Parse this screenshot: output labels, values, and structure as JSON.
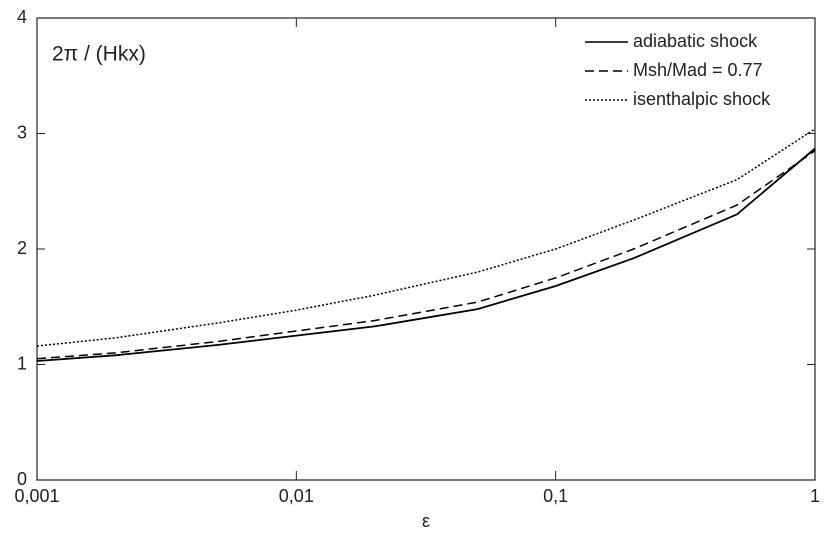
{
  "chart_data": {
    "type": "line",
    "title": "2π / (Hkx)",
    "x_label": "ε",
    "x": [
      0.001,
      0.002,
      0.005,
      0.01,
      0.02,
      0.05,
      0.1,
      0.2,
      0.5,
      1
    ],
    "x_scale": "log",
    "series": [
      {
        "name": "adiabatic shock",
        "color": "#000000",
        "dash": "solid",
        "values": [
          1.03,
          1.08,
          1.17,
          1.25,
          1.33,
          1.48,
          1.68,
          1.92,
          2.3,
          2.87
        ]
      },
      {
        "name": "Msh/Mad = 0.77",
        "color": "#000000",
        "dash": "dashed",
        "values": [
          1.05,
          1.1,
          1.2,
          1.29,
          1.38,
          1.54,
          1.75,
          2.0,
          2.38,
          2.85
        ]
      },
      {
        "name": "isenthalpic shock",
        "color": "#000000",
        "dash": "dotted",
        "values": [
          1.16,
          1.23,
          1.36,
          1.47,
          1.6,
          1.8,
          2.0,
          2.25,
          2.6,
          3.04
        ]
      }
    ],
    "xlim": [
      0.001,
      1
    ],
    "xticks": [
      {
        "value": 0.001,
        "label": "0,001"
      },
      {
        "value": 0.01,
        "label": "0,01"
      },
      {
        "value": 0.1,
        "label": "0,1"
      },
      1
    ],
    "ylim": [
      0,
      4
    ],
    "yticks": [
      0,
      1,
      2,
      3,
      4
    ],
    "grid": false,
    "legend": "top-right"
  }
}
